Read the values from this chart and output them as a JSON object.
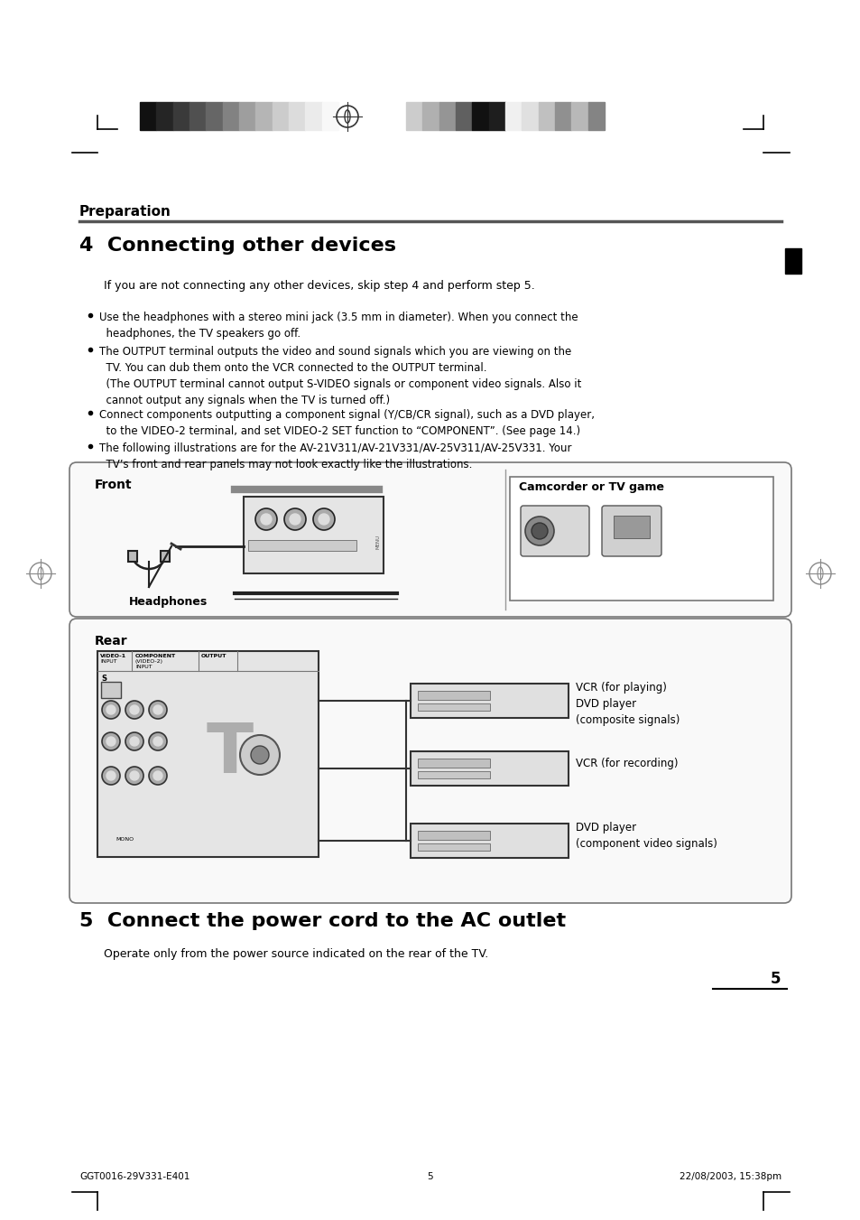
{
  "bg_color": "#ffffff",
  "page_width": 9.54,
  "page_height": 13.51,
  "section_title": "Preparation",
  "step4_title": "4  Connecting other devices",
  "step4_intro": "If you are not connecting any other devices, skip step 4 and perform step 5.",
  "bullet1": "Use the headphones with a stereo mini jack (3.5 mm in diameter). When you connect the\n  headphones, the TV speakers go off.",
  "bullet2": "The OUTPUT terminal outputs the video and sound signals which you are viewing on the\n  TV. You can dub them onto the VCR connected to the OUTPUT terminal.\n  (The OUTPUT terminal cannot output S-VIDEO signals or component video signals. Also it\n  cannot output any signals when the TV is turned off.)",
  "bullet3": "Connect components outputting a component signal (Y/CB/CR signal), such as a DVD player,\n  to the VIDEO-2 terminal, and set VIDEO-2 SET function to “COMPONENT”. (See page 14.)",
  "bullet4": "The following illustrations are for the AV-21V311/AV-21V331/AV-25V311/AV-25V331. Your\n  TV’s front and rear panels may not look exactly like the illustrations.",
  "front_label": "Front",
  "headphones_label": "Headphones",
  "camcorder_label": "Camcorder or TV game",
  "rear_label": "Rear",
  "vcr_play_label": "VCR (for playing)\nDVD player\n(composite signals)",
  "vcr_rec_label": "VCR (for recording)",
  "dvd_label": "DVD player\n(component video signals)",
  "step5_title": "5  Connect the power cord to the AC outlet",
  "step5_text": "Operate only from the power source indicated on the rear of the TV.",
  "page_number": "5",
  "footer_left": "GGT0016-29V331-E401",
  "footer_center": "5",
  "footer_right": "22/08/2003, 15:38pm",
  "header_colors_left": [
    "#111111",
    "#252525",
    "#3a3a3a",
    "#505050",
    "#666666",
    "#828282",
    "#9e9e9e",
    "#b5b5b5",
    "#cccccc",
    "#dcdcdc",
    "#ebebeb",
    "#f8f8f8"
  ],
  "header_colors_right": [
    "#cccccc",
    "#b0b0b0",
    "#959595",
    "#606060",
    "#111111",
    "#1e1e1e",
    "#f0f0f0",
    "#e0e0e0",
    "#c0c0c0",
    "#909090",
    "#b8b8b8",
    "#848484"
  ]
}
